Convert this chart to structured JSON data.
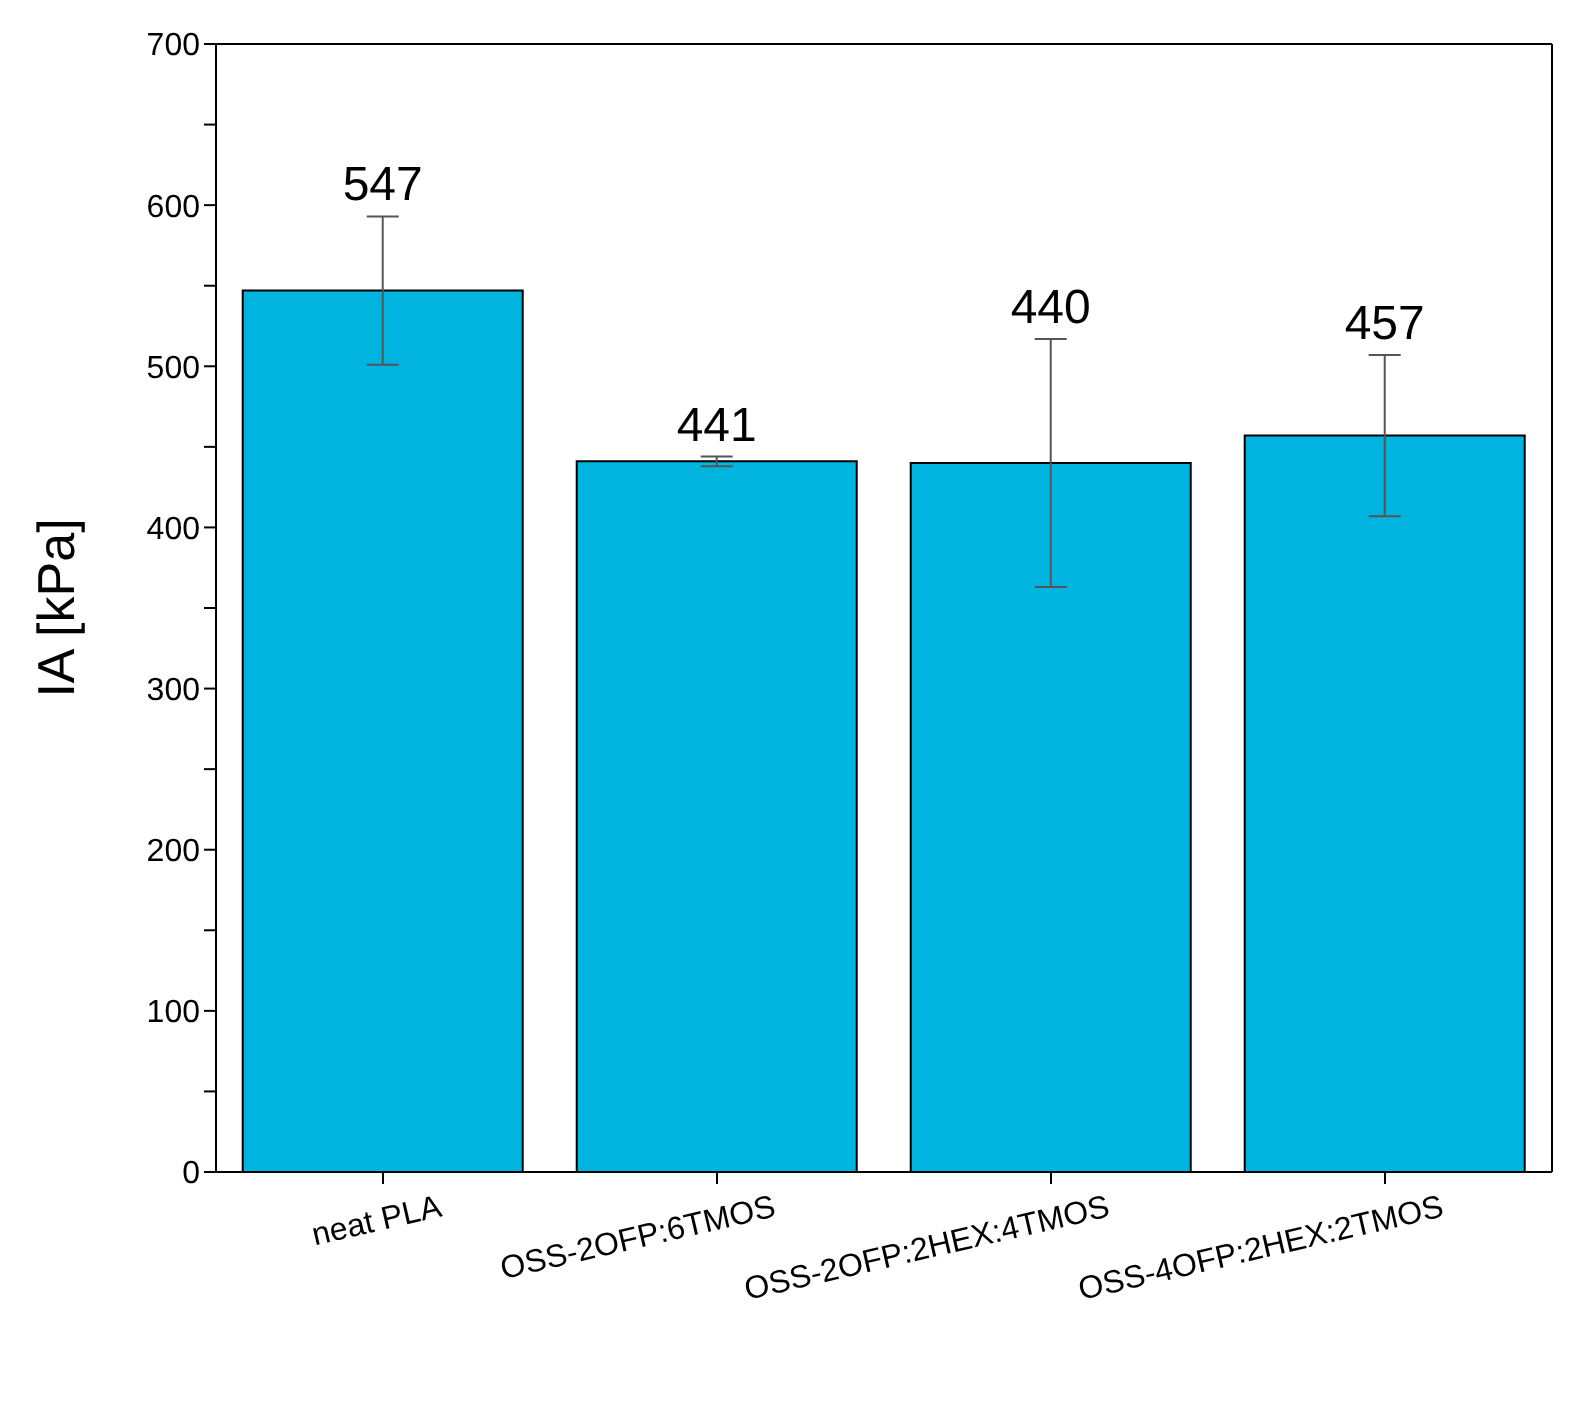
{
  "chart_data": {
    "type": "bar",
    "ylabel": "IA [kPa]",
    "categories": [
      "neat PLA",
      "OSS-2OFP:6TMOS",
      "OSS-2OFP:2HEX:4TMOS",
      "OSS-4OFP:2HEX:2TMOS"
    ],
    "values": [
      547,
      441,
      440,
      457
    ],
    "errors": [
      46,
      3,
      77,
      50
    ],
    "color": "#00b4e0",
    "ylim": [
      0,
      700
    ],
    "yticks": [
      0,
      {
        "value": 50,
        "label": null
      },
      100,
      {
        "value": 150,
        "label": null
      },
      200,
      {
        "value": 250,
        "label": null
      },
      300,
      {
        "value": 350,
        "label": null
      },
      400,
      {
        "value": 450,
        "label": null
      },
      500,
      {
        "value": 550,
        "label": null
      },
      600,
      {
        "value": 650,
        "label": null
      },
      700
    ],
    "data_labels": true,
    "grid": false
  }
}
